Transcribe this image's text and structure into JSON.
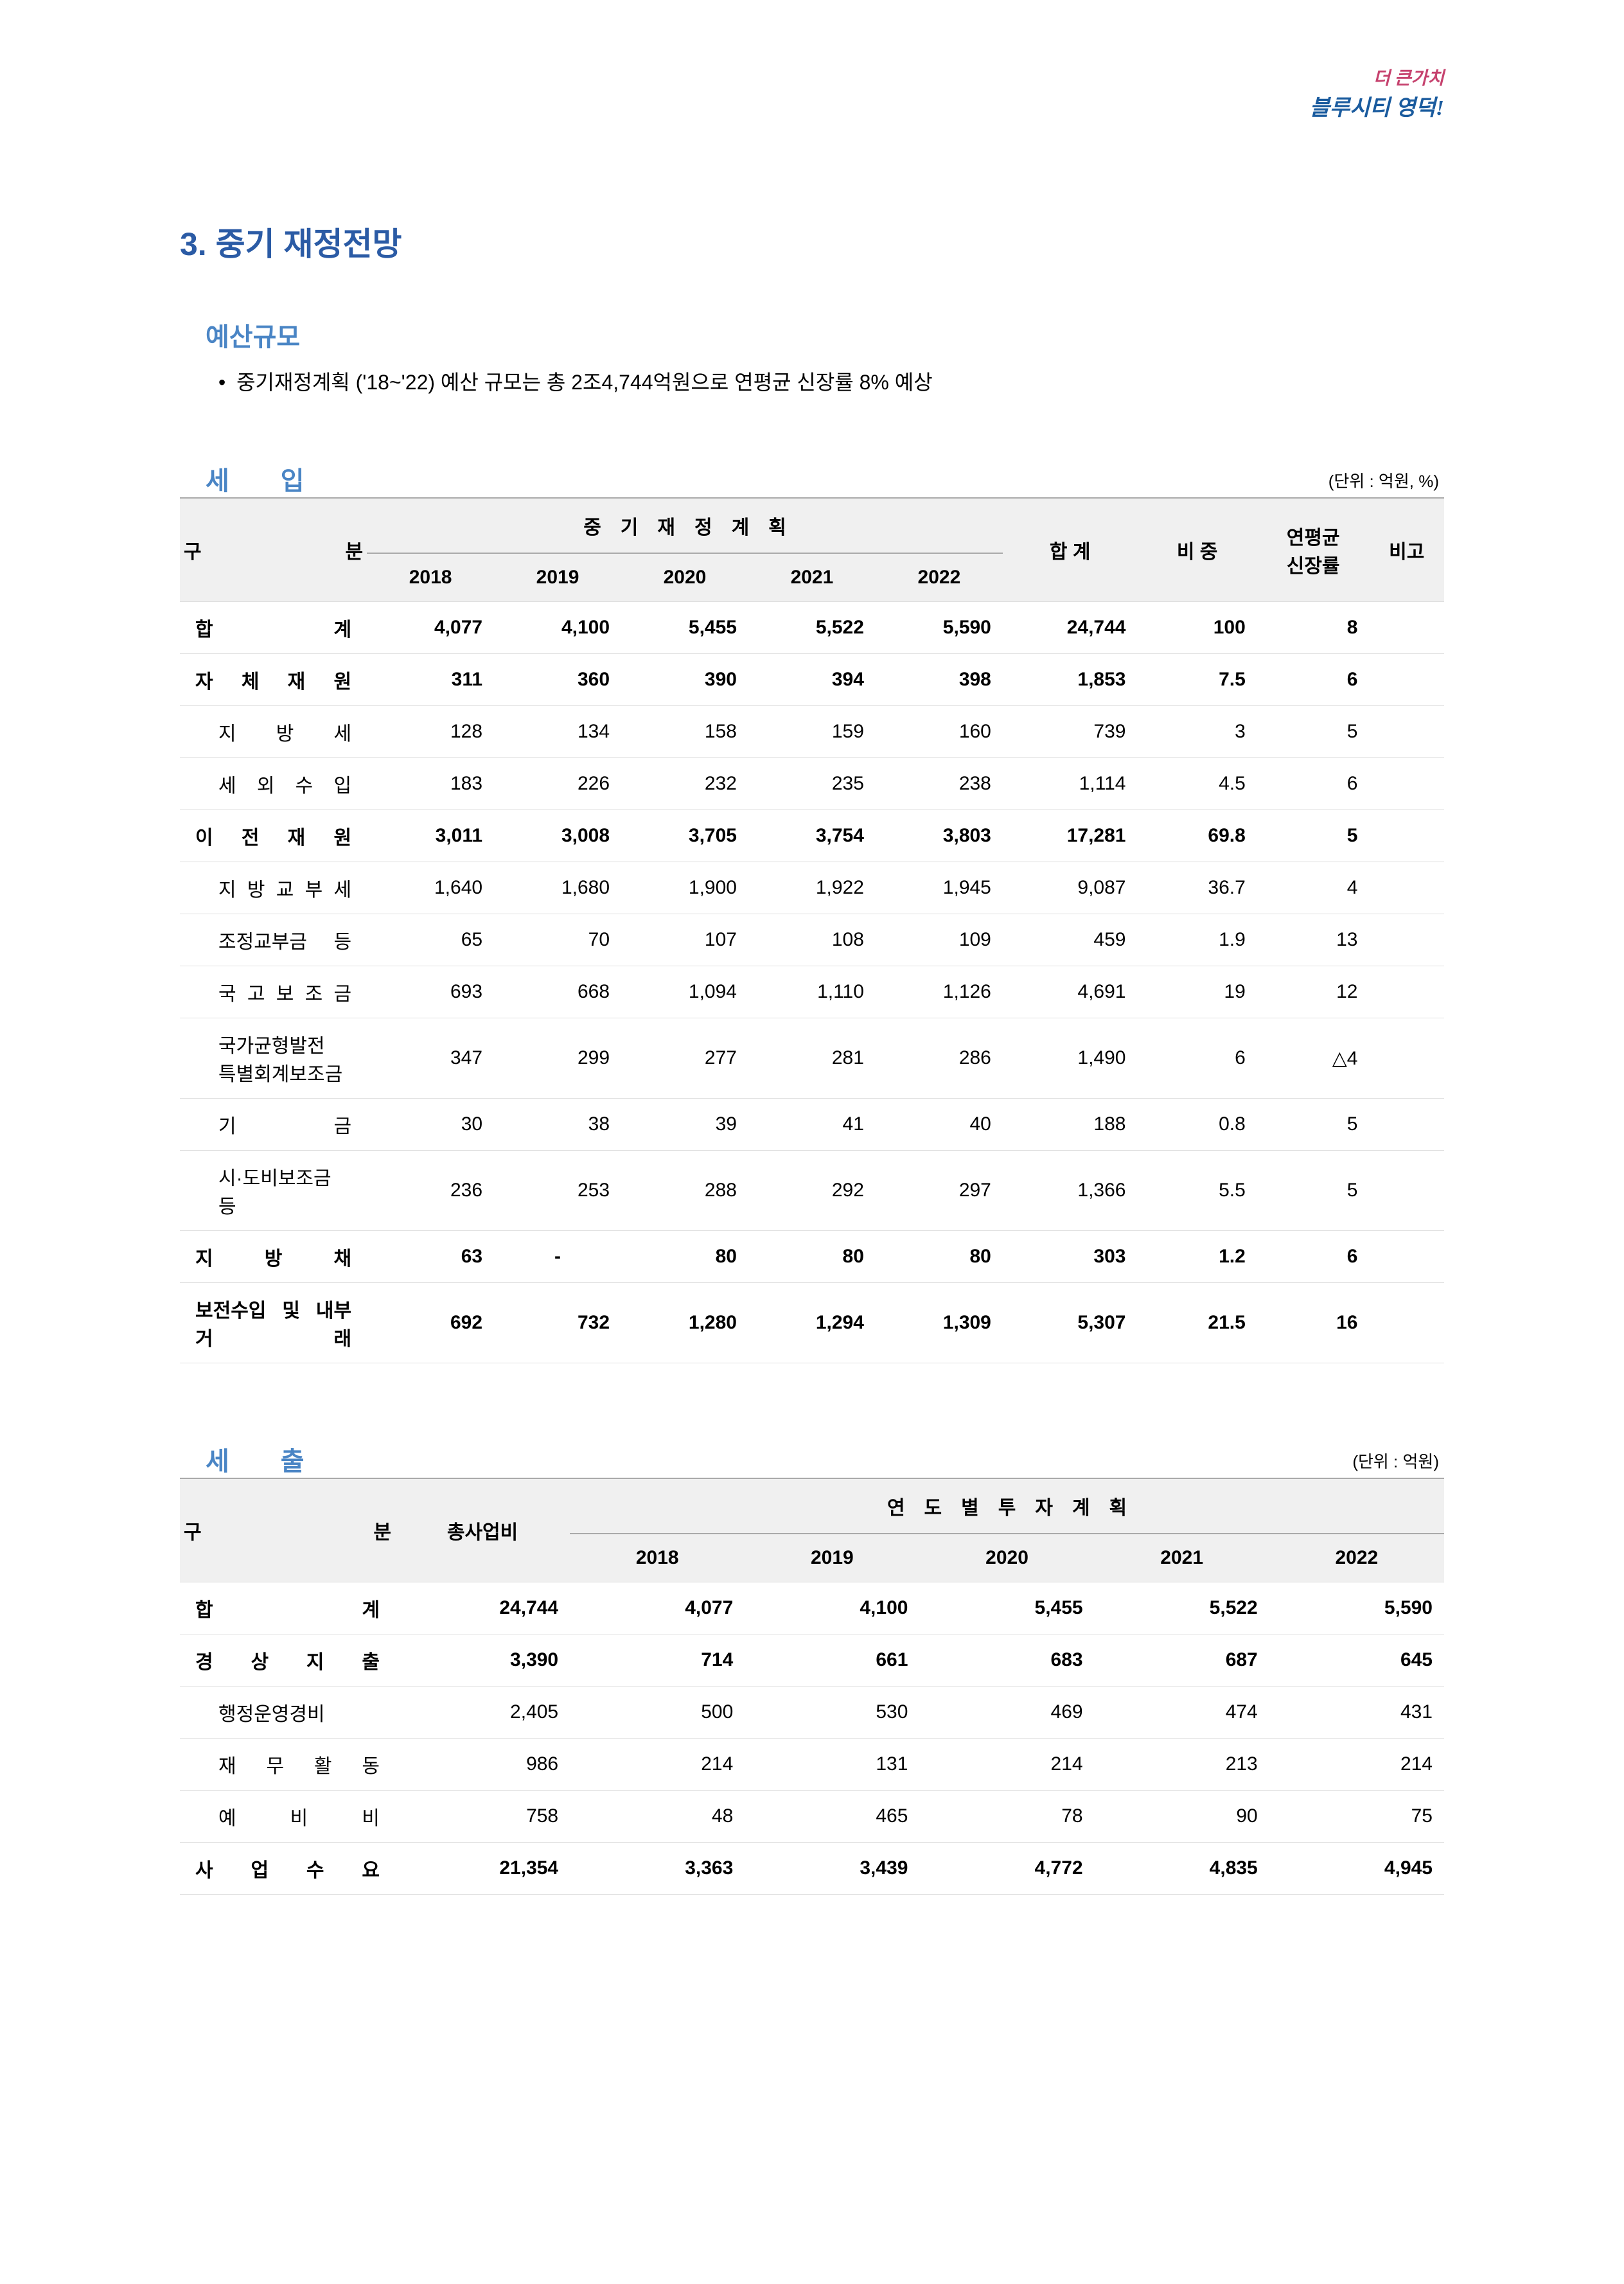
{
  "colors": {
    "accent_blue": "#2b5ba5",
    "sub_blue": "#4a85c5",
    "header_bg": "#f0f0f0",
    "row_border": "#dddddd",
    "thead_border": "#aaaaaa",
    "logo_pink": "#c6426e",
    "logo_blue": "#1a5b9e",
    "text": "#000000",
    "bg": "#ffffff"
  },
  "fonts": {
    "base_family": "Malgun Gothic",
    "title_size_pt": 38,
    "subtitle_size_pt": 30,
    "body_size_pt": 22
  },
  "logo": {
    "line1": "더 큰가치",
    "line2": "블루시티 영덕!"
  },
  "section_title": "3. 중기 재정전망",
  "budget_scale": {
    "title": "예산규모",
    "bullet": "중기재정계획 ('18~'22) 예산 규모는 총 2조4,744억원으로 연평균 신장률 8% 예상"
  },
  "revenue": {
    "title": "세　　입",
    "unit": "(단위 : 억원, %)",
    "header": {
      "category": "구　　분",
      "plan_span": "중　기　재　정　계　획",
      "years": [
        "2018",
        "2019",
        "2020",
        "2021",
        "2022"
      ],
      "total": "합 계",
      "ratio": "비 중",
      "growth": "연평균\n신장률",
      "note": "비고"
    },
    "rows": [
      {
        "cat": "합　　계",
        "style": "bold",
        "indent": 0,
        "y": [
          "4,077",
          "4,100",
          "5,455",
          "5,522",
          "5,590"
        ],
        "tot": "24,744",
        "ratio": "100",
        "grow": "8",
        "note": ""
      },
      {
        "cat": "자 체 재 원",
        "style": "semi",
        "indent": 0,
        "y": [
          "311",
          "360",
          "390",
          "394",
          "398"
        ],
        "tot": "1,853",
        "ratio": "7.5",
        "grow": "6",
        "note": ""
      },
      {
        "cat": "지 방 세",
        "style": "",
        "indent": 1,
        "y": [
          "128",
          "134",
          "158",
          "159",
          "160"
        ],
        "tot": "739",
        "ratio": "3",
        "grow": "5",
        "note": ""
      },
      {
        "cat": "세 외 수 입",
        "style": "",
        "indent": 1,
        "y": [
          "183",
          "226",
          "232",
          "235",
          "238"
        ],
        "tot": "1,114",
        "ratio": "4.5",
        "grow": "6",
        "note": ""
      },
      {
        "cat": "이 전 재 원",
        "style": "semi",
        "indent": 0,
        "y": [
          "3,011",
          "3,008",
          "3,705",
          "3,754",
          "3,803"
        ],
        "tot": "17,281",
        "ratio": "69.8",
        "grow": "5",
        "note": ""
      },
      {
        "cat": "지 방 교 부 세",
        "style": "",
        "indent": 1,
        "y": [
          "1,640",
          "1,680",
          "1,900",
          "1,922",
          "1,945"
        ],
        "tot": "9,087",
        "ratio": "36.7",
        "grow": "4",
        "note": ""
      },
      {
        "cat": "조정교부금 등",
        "style": "",
        "indent": 1,
        "y": [
          "65",
          "70",
          "107",
          "108",
          "109"
        ],
        "tot": "459",
        "ratio": "1.9",
        "grow": "13",
        "note": ""
      },
      {
        "cat": "국 고 보 조 금",
        "style": "",
        "indent": 1,
        "y": [
          "693",
          "668",
          "1,094",
          "1,110",
          "1,126"
        ],
        "tot": "4,691",
        "ratio": "19",
        "grow": "12",
        "note": ""
      },
      {
        "cat": "국가균형발전\n특별회계보조금",
        "style": "",
        "indent": 1,
        "y": [
          "347",
          "299",
          "277",
          "281",
          "286"
        ],
        "tot": "1,490",
        "ratio": "6",
        "grow": "△4",
        "note": ""
      },
      {
        "cat": "기　　금",
        "style": "",
        "indent": 1,
        "y": [
          "30",
          "38",
          "39",
          "41",
          "40"
        ],
        "tot": "188",
        "ratio": "0.8",
        "grow": "5",
        "note": ""
      },
      {
        "cat": "시·도비보조금 등",
        "style": "",
        "indent": 1,
        "y": [
          "236",
          "253",
          "288",
          "292",
          "297"
        ],
        "tot": "1,366",
        "ratio": "5.5",
        "grow": "5",
        "note": ""
      },
      {
        "cat": "지 방 채",
        "style": "semi",
        "indent": 0,
        "y": [
          "63",
          "-",
          "80",
          "80",
          "80"
        ],
        "tot": "303",
        "ratio": "1.2",
        "grow": "6",
        "note": ""
      },
      {
        "cat": "보전수입 및 내부 거 래",
        "style": "semi",
        "indent": 0,
        "y": [
          "692",
          "732",
          "1,280",
          "1,294",
          "1,309"
        ],
        "tot": "5,307",
        "ratio": "21.5",
        "grow": "16",
        "note": ""
      }
    ]
  },
  "expenditure": {
    "title": "세　　출",
    "unit": "(단위 : 억원)",
    "header": {
      "category": "구　분",
      "total": "총사업비",
      "plan_span": "연　도　별　투　자　계　획",
      "years": [
        "2018",
        "2019",
        "2020",
        "2021",
        "2022"
      ]
    },
    "rows": [
      {
        "cat": "합　　계",
        "style": "bold",
        "indent": 0,
        "tot": "24,744",
        "y": [
          "4,077",
          "4,100",
          "5,455",
          "5,522",
          "5,590"
        ]
      },
      {
        "cat": "경 상 지 출",
        "style": "semi",
        "indent": 0,
        "tot": "3,390",
        "y": [
          "714",
          "661",
          "683",
          "687",
          "645"
        ]
      },
      {
        "cat": "행정운영경비",
        "style": "",
        "indent": 1,
        "tot": "2,405",
        "y": [
          "500",
          "530",
          "469",
          "474",
          "431"
        ]
      },
      {
        "cat": "재 무 활 동",
        "style": "",
        "indent": 1,
        "tot": "986",
        "y": [
          "214",
          "131",
          "214",
          "213",
          "214"
        ]
      },
      {
        "cat": "예 비 비",
        "style": "",
        "indent": 1,
        "tot": "758",
        "y": [
          "48",
          "465",
          "78",
          "90",
          "75"
        ]
      },
      {
        "cat": "사 업 수 요",
        "style": "semi",
        "indent": 0,
        "tot": "21,354",
        "y": [
          "3,363",
          "3,439",
          "4,772",
          "4,835",
          "4,945"
        ]
      }
    ]
  }
}
